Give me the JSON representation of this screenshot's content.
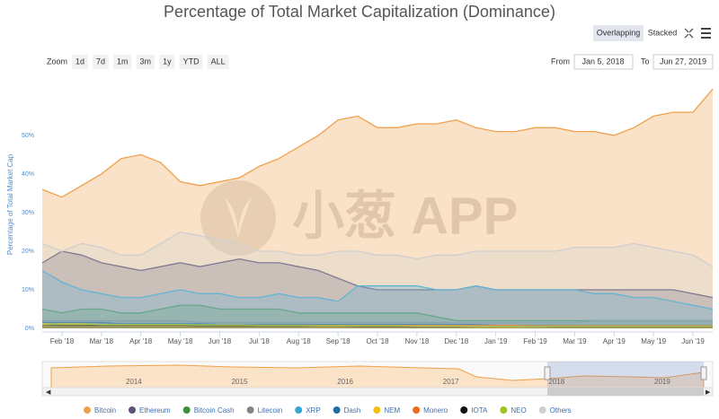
{
  "chart_data": {
    "type": "area",
    "title": "Percentage of Total Market Capitalization (Dominance)",
    "y_label": "Percentage of Total Market Cap",
    "categories": [
      null,
      "Feb '18",
      null,
      "Mar '18",
      null,
      "Apr '18",
      null,
      "May '18",
      null,
      "Jun '18",
      null,
      "Jul '18",
      null,
      "Aug '18",
      null,
      "Sep '18",
      null,
      "Oct '18",
      null,
      "Nov '18",
      null,
      "Dec '18",
      null,
      "Jan '19",
      null,
      "Feb '19",
      null,
      "Mar '19",
      null,
      "Apr '19",
      null,
      "May '19",
      null,
      "Jun '19",
      null
    ],
    "ylim": [
      0,
      63
    ],
    "yticks": [
      {
        "value": 0,
        "label": "0%"
      },
      {
        "value": 10,
        "label": "10%"
      },
      {
        "value": 20,
        "label": "20%"
      },
      {
        "value": 30,
        "label": "30%"
      },
      {
        "value": 40,
        "label": "40%"
      },
      {
        "value": 50,
        "label": "50%"
      }
    ],
    "series": [
      {
        "name": "Bitcoin",
        "color": "#f0a04b",
        "values": [
          36,
          34,
          37,
          40,
          44,
          45,
          43,
          38,
          37,
          38,
          39,
          42,
          44,
          47,
          50,
          54,
          55,
          52,
          52,
          53,
          53,
          54,
          52,
          51,
          51,
          52,
          52,
          51,
          51,
          50,
          52,
          55,
          56,
          56,
          62
        ]
      },
      {
        "name": "Ethereum",
        "color": "#5a5578",
        "values": [
          17,
          20,
          19,
          17,
          16,
          15,
          16,
          17,
          16,
          17,
          18,
          17,
          17,
          16,
          15,
          13,
          11,
          10,
          10,
          10,
          10,
          10,
          11,
          10,
          10,
          10,
          10,
          10,
          10,
          10,
          10,
          10,
          10,
          9,
          8
        ]
      },
      {
        "name": "Bitcoin Cash",
        "color": "#3f8f3f",
        "values": [
          5,
          4,
          5,
          5,
          4,
          4,
          5,
          6,
          6,
          5,
          5,
          5,
          5,
          4,
          4,
          4,
          4,
          4,
          4,
          4,
          3,
          2,
          2,
          2,
          2,
          2,
          2,
          2,
          2,
          2,
          2,
          2,
          2,
          2,
          2
        ]
      },
      {
        "name": "Litecoin",
        "color": "#858585",
        "values": [
          2,
          2,
          2,
          2,
          2,
          2,
          2,
          2,
          1.5,
          1.5,
          1.5,
          1.5,
          1.5,
          1.5,
          1.5,
          1.5,
          1.5,
          1.5,
          1.5,
          1.5,
          1.5,
          1.5,
          1.5,
          1.5,
          1.5,
          1.5,
          1.5,
          1.5,
          2,
          2,
          2,
          2,
          2,
          2,
          2
        ]
      },
      {
        "name": "XRP",
        "color": "#35a8d6",
        "values": [
          15,
          12,
          10,
          9,
          8,
          8,
          9,
          10,
          9,
          9,
          8,
          8,
          9,
          8,
          8,
          7,
          11,
          11,
          11,
          11,
          10,
          10,
          11,
          10,
          10,
          10,
          10,
          10,
          9,
          9,
          8,
          8,
          7,
          6,
          5
        ]
      },
      {
        "name": "Dash",
        "color": "#1f6ea8",
        "values": [
          1.5,
          1.5,
          1.5,
          1.5,
          1.2,
          1.2,
          1.2,
          1.2,
          1.2,
          1,
          1,
          1,
          1,
          1,
          1,
          1,
          1,
          1,
          1,
          1,
          1,
          1,
          1,
          0.8,
          0.8,
          0.8,
          0.8,
          0.8,
          0.8,
          0.8,
          0.8,
          0.8,
          0.8,
          0.8,
          0.8
        ]
      },
      {
        "name": "NEM",
        "color": "#f3c019",
        "values": [
          1.2,
          1,
          1,
          0.8,
          0.8,
          0.6,
          0.6,
          0.6,
          0.5,
          0.5,
          0.5,
          0.5,
          0.5,
          0.5,
          0.4,
          0.4,
          0.4,
          0.4,
          0.4,
          0.4,
          0.4,
          0.3,
          0.3,
          0.3,
          0.3,
          0.3,
          0.3,
          0.3,
          0.3,
          0.3,
          0.3,
          0.3,
          0.3,
          0.3,
          0.3
        ]
      },
      {
        "name": "Monero",
        "color": "#f0681f",
        "values": [
          0.8,
          0.8,
          0.8,
          0.8,
          0.8,
          0.8,
          0.8,
          0.8,
          0.8,
          0.8,
          0.8,
          0.8,
          0.8,
          0.8,
          0.8,
          0.8,
          0.8,
          0.8,
          0.8,
          0.8,
          0.8,
          0.8,
          0.8,
          0.8,
          0.8,
          0.7,
          0.7,
          0.7,
          0.7,
          0.7,
          0.7,
          0.7,
          0.7,
          0.7,
          0.7
        ]
      },
      {
        "name": "IOTA",
        "color": "#111111",
        "values": [
          0.9,
          0.8,
          0.8,
          0.8,
          0.8,
          0.8,
          0.8,
          0.8,
          0.6,
          0.6,
          0.6,
          0.6,
          0.6,
          0.6,
          0.6,
          0.6,
          0.5,
          0.5,
          0.5,
          0.5,
          0.5,
          0.5,
          0.5,
          0.5,
          0.5,
          0.5,
          0.4,
          0.4,
          0.4,
          0.4,
          0.4,
          0.4,
          0.4,
          0.4,
          0.4
        ]
      },
      {
        "name": "NEO",
        "color": "#9cc51c",
        "values": [
          1,
          1.2,
          1.2,
          1,
          1,
          1,
          1,
          1,
          0.9,
          0.9,
          0.9,
          0.8,
          0.8,
          0.8,
          0.7,
          0.7,
          0.7,
          0.7,
          0.7,
          0.6,
          0.6,
          0.6,
          0.5,
          0.5,
          0.5,
          0.5,
          0.5,
          0.5,
          0.5,
          0.5,
          0.5,
          0.5,
          0.5,
          0.5,
          0.5
        ]
      },
      {
        "name": "Others",
        "color": "#cfcfcf",
        "values": [
          22,
          20,
          22,
          21,
          19,
          19,
          22,
          25,
          24,
          23,
          22,
          20,
          20,
          19,
          19,
          20,
          20,
          19,
          19,
          18,
          19,
          19,
          20,
          20,
          20,
          20,
          20,
          21,
          21,
          21,
          22,
          21,
          20,
          19,
          16
        ]
      }
    ],
    "navigator_years": [
      "2014",
      "2015",
      "2016",
      "2017",
      "2018",
      "2019"
    ]
  },
  "controls": {
    "view": [
      "Overlapping",
      "Stacked"
    ],
    "zoom_label": "Zoom",
    "zoom": [
      "1d",
      "7d",
      "1m",
      "3m",
      "1y",
      "YTD",
      "ALL"
    ],
    "from_label": "From",
    "from": "Jan 5, 2018",
    "to_label": "To",
    "to": "Jun 27, 2019"
  },
  "watermark": "小葱 APP"
}
